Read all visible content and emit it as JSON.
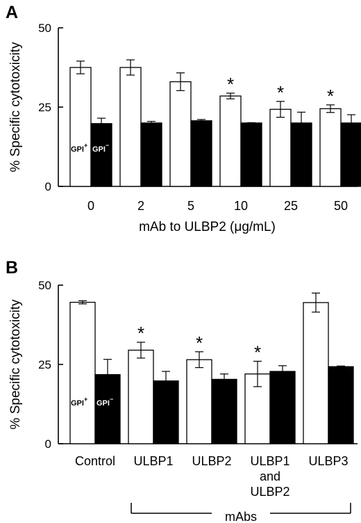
{
  "chart_data": [
    {
      "panel_label": "A",
      "type": "bar",
      "xlabel": "mAb to ULBP2  (μg/mL)",
      "ylabel": "% Specific cytotoxicity",
      "ylim": [
        0,
        50
      ],
      "yticks": [
        "0",
        "25",
        "50"
      ],
      "categories": [
        "0",
        "2",
        "5",
        "10",
        "25",
        "50"
      ],
      "series": [
        {
          "name": "GPI+",
          "fill": "#ffffff",
          "values": [
            37.5,
            37.5,
            33,
            28.5,
            24.3,
            24.5
          ],
          "errors": [
            2,
            2.4,
            2.8,
            0.9,
            2.5,
            1.2
          ]
        },
        {
          "name": "GPI−",
          "fill": "#000000",
          "values": [
            19.8,
            20,
            20.7,
            20,
            20,
            20
          ],
          "errors": [
            1.7,
            0.5,
            0.4,
            0.1,
            3.4,
            2.6
          ]
        }
      ],
      "significant": [
        false,
        false,
        false,
        true,
        true,
        true
      ],
      "legend": {
        "left_label": "GPI",
        "left_sup": "+",
        "right_label": "GPI",
        "right_sup": "−"
      }
    },
    {
      "panel_label": "B",
      "type": "bar",
      "ylabel": "% Specific cytotoxicity",
      "ylim": [
        0,
        50
      ],
      "yticks": [
        "0",
        "25",
        "50"
      ],
      "categories": [
        [
          "Control"
        ],
        [
          "ULBP1"
        ],
        [
          "ULBP2"
        ],
        [
          "ULBP1",
          "and",
          "ULBP2"
        ],
        [
          "ULBP3"
        ]
      ],
      "group_label": "mAbs",
      "series": [
        {
          "name": "GPI+",
          "fill": "#ffffff",
          "values": [
            44.6,
            29.5,
            26.5,
            22,
            44.5
          ],
          "errors": [
            0.5,
            2.5,
            2.5,
            4,
            3
          ]
        },
        {
          "name": "GPI−",
          "fill": "#000000",
          "values": [
            21.8,
            19.8,
            20.3,
            22.8,
            24.3
          ],
          "errors": [
            4.8,
            3,
            1.7,
            1.8,
            0.2
          ]
        }
      ],
      "significant": [
        false,
        true,
        true,
        true,
        false
      ],
      "legend": {
        "left_label": "GPI",
        "left_sup": "+",
        "right_label": "GPI",
        "right_sup": "−"
      }
    }
  ],
  "sig_marker": "*"
}
